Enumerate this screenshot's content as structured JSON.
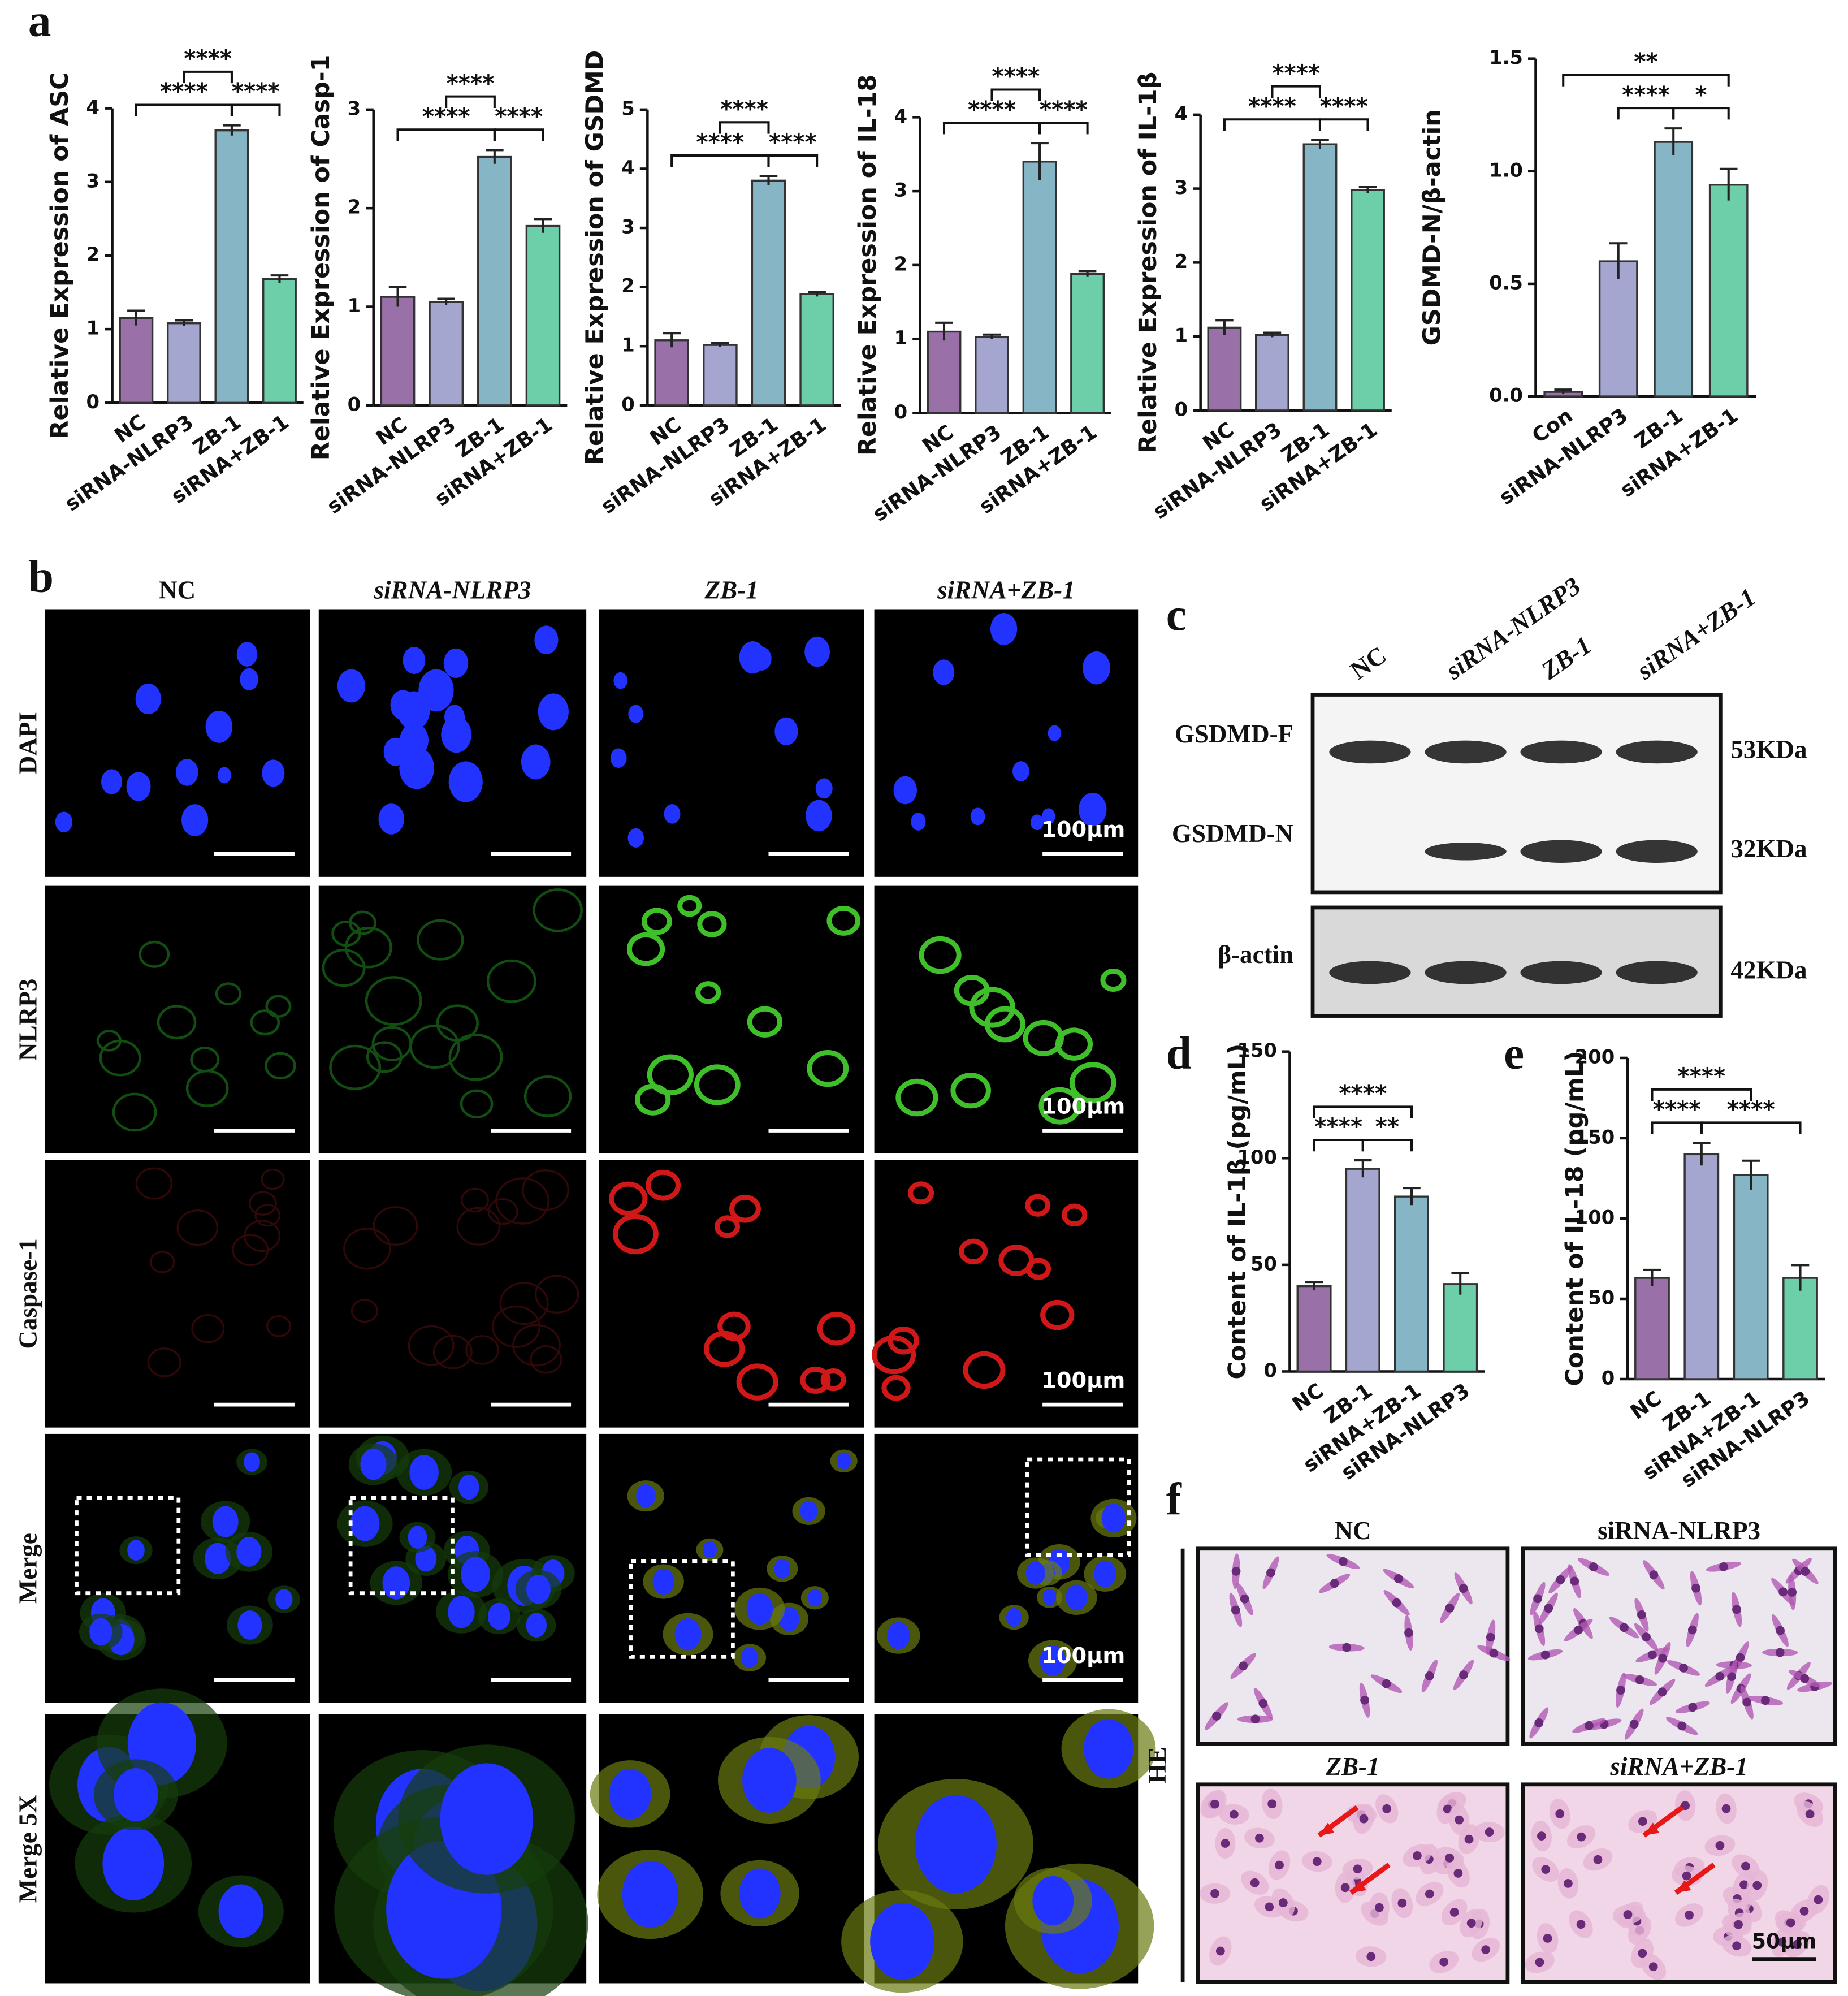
{
  "chart_data": [
    {
      "type": "bar",
      "ylabel": "Relative Expression of ASC",
      "categories": [
        "NC",
        "siRNA-NLRP3",
        "ZB-1",
        "siRNA+ZB-1"
      ],
      "values": [
        1.15,
        1.08,
        3.7,
        1.68
      ],
      "errors": [
        0.1,
        0.04,
        0.07,
        0.05
      ],
      "colors": [
        "#9a70a8",
        "#a5a6cf",
        "#86b6c6",
        "#6dcfa9"
      ],
      "ylim": [
        0,
        4
      ],
      "yticks": [
        0,
        1,
        2,
        3,
        4
      ],
      "comparisons": [
        {
          "label": "****",
          "groups": [
            "NC",
            "ZB-1"
          ]
        },
        {
          "label": "****",
          "groups": [
            "ZB-1",
            "siRNA+ZB-1"
          ]
        },
        {
          "label": "****",
          "groups": [
            "siRNA-NLRP3",
            "ZB-1"
          ]
        }
      ]
    },
    {
      "type": "bar",
      "ylabel": "Relative Expression of Casp-1",
      "categories": [
        "NC",
        "siRNA-NLRP3",
        "ZB-1",
        "siRNA+ZB-1"
      ],
      "values": [
        1.1,
        1.05,
        2.52,
        1.82
      ],
      "errors": [
        0.1,
        0.03,
        0.07,
        0.07
      ],
      "colors": [
        "#9a70a8",
        "#a5a6cf",
        "#86b6c6",
        "#6dcfa9"
      ],
      "ylim": [
        0,
        3
      ],
      "yticks": [
        0,
        1,
        2,
        3
      ],
      "comparisons": [
        {
          "label": "****",
          "groups": [
            "NC",
            "ZB-1"
          ]
        },
        {
          "label": "****",
          "groups": [
            "ZB-1",
            "siRNA+ZB-1"
          ]
        },
        {
          "label": "****",
          "groups": [
            "siRNA-NLRP3",
            "ZB-1"
          ]
        }
      ]
    },
    {
      "type": "bar",
      "ylabel": "Relative Expression of GSDMD",
      "categories": [
        "NC",
        "siRNA-NLRP3",
        "ZB-1",
        "siRNA+ZB-1"
      ],
      "values": [
        1.1,
        1.02,
        3.8,
        1.88
      ],
      "errors": [
        0.12,
        0.03,
        0.08,
        0.04
      ],
      "colors": [
        "#9a70a8",
        "#a5a6cf",
        "#86b6c6",
        "#6dcfa9"
      ],
      "ylim": [
        0,
        5
      ],
      "yticks": [
        0,
        1,
        2,
        3,
        4,
        5
      ],
      "comparisons": [
        {
          "label": "****",
          "groups": [
            "NC",
            "ZB-1"
          ]
        },
        {
          "label": "****",
          "groups": [
            "ZB-1",
            "siRNA+ZB-1"
          ]
        },
        {
          "label": "****",
          "groups": [
            "siRNA-NLRP3",
            "ZB-1"
          ]
        }
      ]
    },
    {
      "type": "bar",
      "ylabel": "Relative Expression of IL-18",
      "categories": [
        "NC",
        "siRNA-NLRP3",
        "ZB-1",
        "siRNA+ZB-1"
      ],
      "values": [
        1.1,
        1.03,
        3.4,
        1.88
      ],
      "errors": [
        0.12,
        0.03,
        0.25,
        0.04
      ],
      "colors": [
        "#9a70a8",
        "#a5a6cf",
        "#86b6c6",
        "#6dcfa9"
      ],
      "ylim": [
        0,
        4
      ],
      "yticks": [
        0,
        1,
        2,
        3,
        4
      ],
      "comparisons": [
        {
          "label": "****",
          "groups": [
            "NC",
            "ZB-1"
          ]
        },
        {
          "label": "****",
          "groups": [
            "ZB-1",
            "siRNA+ZB-1"
          ]
        },
        {
          "label": "****",
          "groups": [
            "siRNA-NLRP3",
            "ZB-1"
          ]
        }
      ]
    },
    {
      "type": "bar",
      "ylabel": "Relative Expression of IL-1β",
      "categories": [
        "NC",
        "siRNA-NLRP3",
        "ZB-1",
        "siRNA+ZB-1"
      ],
      "values": [
        1.12,
        1.02,
        3.6,
        2.98
      ],
      "errors": [
        0.1,
        0.03,
        0.06,
        0.04
      ],
      "colors": [
        "#9a70a8",
        "#a5a6cf",
        "#86b6c6",
        "#6dcfa9"
      ],
      "ylim": [
        0,
        4
      ],
      "yticks": [
        0,
        1,
        2,
        3,
        4
      ],
      "comparisons": [
        {
          "label": "****",
          "groups": [
            "NC",
            "ZB-1"
          ]
        },
        {
          "label": "****",
          "groups": [
            "ZB-1",
            "siRNA+ZB-1"
          ]
        },
        {
          "label": "****",
          "groups": [
            "siRNA-NLRP3",
            "ZB-1"
          ]
        }
      ]
    },
    {
      "type": "bar",
      "ylabel": "GSDMD-N/β-actin",
      "categories": [
        "Con",
        "siRNA-NLRP3",
        "ZB-1",
        "siRNA+ZB-1"
      ],
      "values": [
        0.02,
        0.6,
        1.13,
        0.94
      ],
      "errors": [
        0.01,
        0.08,
        0.06,
        0.07
      ],
      "colors": [
        "#9a70a8",
        "#a5a6cf",
        "#86b6c6",
        "#6dcfa9"
      ],
      "ylim": [
        0,
        1.5
      ],
      "yticks": [
        {
          "value": 0,
          "label": "0.0"
        },
        0.5,
        {
          "value": 1,
          "label": "1.0"
        },
        1.5
      ],
      "comparisons": [
        {
          "label": "****",
          "groups": [
            "siRNA-NLRP3",
            "ZB-1"
          ]
        },
        {
          "label": "*",
          "groups": [
            "ZB-1",
            "siRNA+ZB-1"
          ]
        },
        {
          "label": "**",
          "groups": [
            "Con",
            "siRNA+ZB-1"
          ]
        }
      ]
    },
    {
      "type": "bar",
      "ylabel": "Content of IL-1β (pg/mL)",
      "categories": [
        "NC",
        "ZB-1",
        "siRNA+ZB-1",
        "siRNA-NLRP3"
      ],
      "values": [
        40,
        95,
        82,
        41
      ],
      "errors": [
        2,
        4,
        4,
        5
      ],
      "colors": [
        "#9a70a8",
        "#a5a6cf",
        "#86b6c6",
        "#6dcfa9"
      ],
      "ylim": [
        0,
        150
      ],
      "yticks": [
        0,
        50,
        100,
        150
      ],
      "comparisons": [
        {
          "label": "****",
          "groups": [
            "NC",
            "ZB-1"
          ]
        },
        {
          "label": "**",
          "groups": [
            "ZB-1",
            "siRNA+ZB-1"
          ]
        },
        {
          "label": "****",
          "groups": [
            "NC",
            "siRNA+ZB-1"
          ]
        }
      ]
    },
    {
      "type": "bar",
      "ylabel": "Content of IL-18 (pg/mL)",
      "categories": [
        "NC",
        "ZB-1",
        "siRNA+ZB-1",
        "siRNA-NLRP3"
      ],
      "values": [
        63,
        140,
        127,
        63
      ],
      "errors": [
        5,
        7,
        9,
        8
      ],
      "colors": [
        "#9a70a8",
        "#a5a6cf",
        "#86b6c6",
        "#6dcfa9"
      ],
      "ylim": [
        0,
        200
      ],
      "yticks": [
        0,
        50,
        100,
        150,
        200
      ],
      "comparisons": [
        {
          "label": "****",
          "groups": [
            "NC",
            "ZB-1"
          ]
        },
        {
          "label": "****",
          "groups": [
            "ZB-1",
            "siRNA-NLRP3"
          ]
        },
        {
          "label": "****",
          "groups": [
            "NC",
            "siRNA+ZB-1"
          ]
        }
      ]
    }
  ],
  "panel_labels": [
    "a",
    "b",
    "c",
    "d",
    "e",
    "f"
  ],
  "microscopy": {
    "columns": [
      "NC",
      "siRNA-NLRP3",
      "ZB-1",
      "siRNA+ZB-1"
    ],
    "rows": [
      "DAPI",
      "NLRP3",
      "Caspase-1",
      "Merge",
      "Merge 5X"
    ],
    "scale_bar": "100μm"
  },
  "western_blot": {
    "lanes": [
      "NC",
      "siRNA-NLRP3",
      "ZB-1",
      "siRNA+ZB-1"
    ],
    "bands": [
      {
        "label": "GSDMD-F",
        "size": "53KDa"
      },
      {
        "label": "GSDMD-N",
        "size": "32KDa"
      },
      {
        "label": "β-actin",
        "size": "42KDa"
      }
    ]
  },
  "he_stain": {
    "stain": "HE",
    "panels": [
      "NC",
      "siRNA-NLRP3",
      "ZB-1",
      "siRNA+ZB-1"
    ],
    "scale_bar": "50μm"
  }
}
